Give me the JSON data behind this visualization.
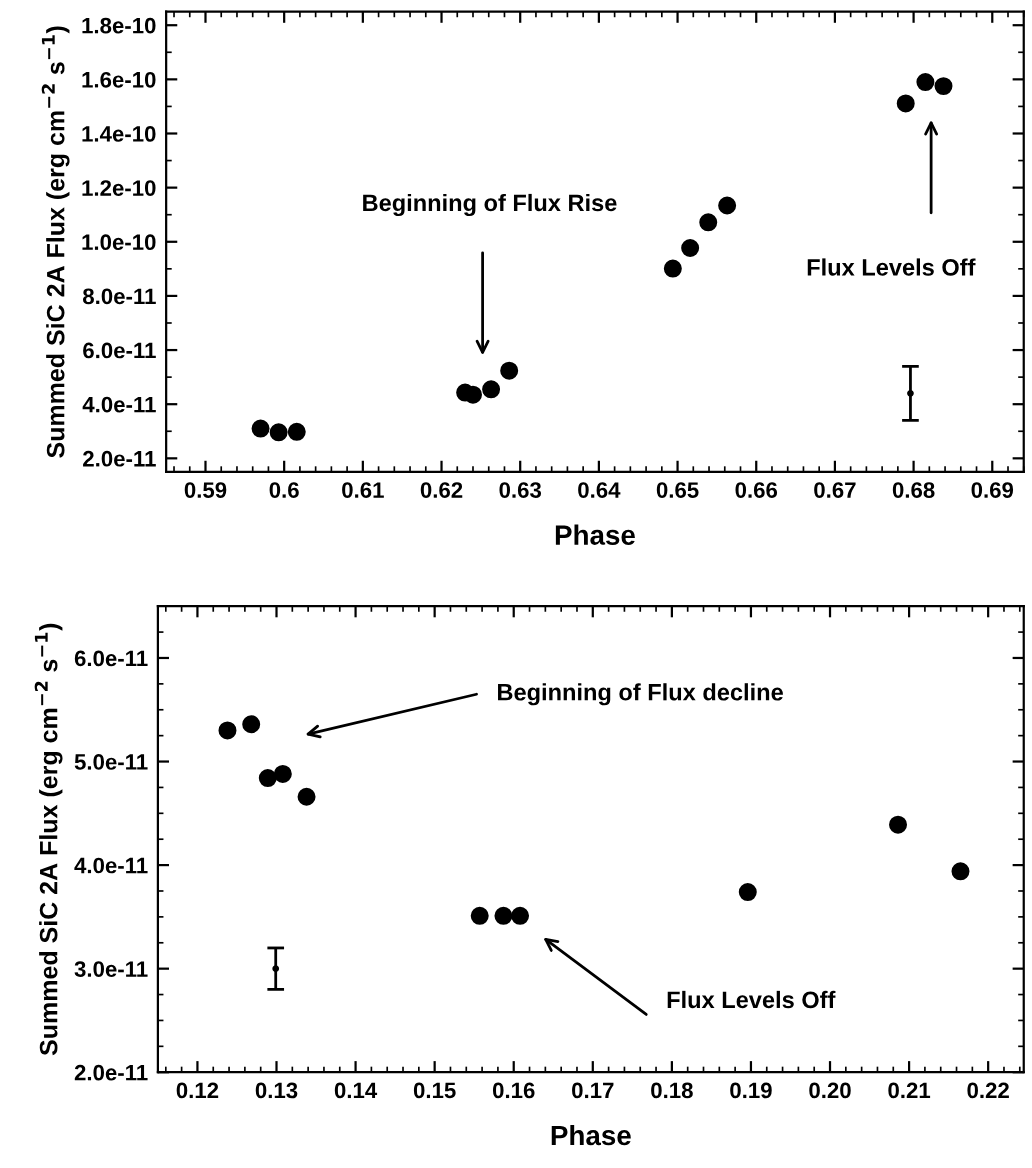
{
  "chart_data": [
    {
      "type": "scatter",
      "xlabel": "Phase",
      "ylabel": "Summed SiC 2A Flux (erg cm$^{−2}$ s$^{−1}$)",
      "xlim": [
        0.585,
        0.694
      ],
      "ylim": [
        1.5e-11,
        1.85e-10
      ],
      "xticks": [
        0.59,
        0.6,
        0.61,
        0.62,
        0.63,
        0.64,
        0.65,
        0.66,
        0.67,
        0.68,
        0.69
      ],
      "yticks": [
        {
          "value": 2e-11,
          "label": "2.0e-11"
        },
        {
          "value": 4e-11,
          "label": "4.0e-11"
        },
        {
          "value": 6e-11,
          "label": "6.0e-11"
        },
        {
          "value": 8e-11,
          "label": "8.0e-11"
        },
        {
          "value": 1e-10,
          "label": "1.0e-10"
        },
        {
          "value": 1.2e-10,
          "label": "1.2e-10"
        },
        {
          "value": 1.4e-10,
          "label": "1.4e-10"
        },
        {
          "value": 1.6e-10,
          "label": "1.6e-10"
        },
        {
          "value": 1.8e-10,
          "label": "1.8e-10"
        }
      ],
      "grid": false,
      "legend": false,
      "series": [
        {
          "color": "#000000",
          "marker": "circle",
          "x": [
            0.597,
            0.5993,
            0.6016,
            0.623,
            0.624,
            0.6263,
            0.6286,
            0.6494,
            0.6516,
            0.6539,
            0.6563,
            0.679,
            0.6815,
            0.6838
          ],
          "values": [
            3.1e-11,
            2.96e-11,
            2.98e-11,
            4.43e-11,
            4.35e-11,
            4.55e-11,
            5.24e-11,
            9.01e-11,
            9.77e-11,
            1.072e-10,
            1.134e-10,
            1.511e-10,
            1.59e-10,
            1.575e-10
          ]
        },
        {
          "color": "#000000",
          "marker": "none",
          "x": [
            0.6796
          ],
          "values": [
            4.4e-11
          ],
          "errors": [
            1e-11
          ]
        }
      ],
      "annotations": [
        "Beginning of Flux Rise",
        "Flux Levels Off"
      ]
    },
    {
      "type": "scatter",
      "xlabel": "Phase",
      "ylabel": "Summed SiC 2A Flux (erg cm$^{−2}$ s$^{−1}$)",
      "xlim": [
        0.115,
        0.2245
      ],
      "ylim": [
        2e-11,
        6.5e-11
      ],
      "xticks": [
        {
          "value": 0.12,
          "label": "0.12"
        },
        {
          "value": 0.13,
          "label": "0.13"
        },
        {
          "value": 0.14,
          "label": "0.14"
        },
        {
          "value": 0.15,
          "label": "0.15"
        },
        {
          "value": 0.16,
          "label": "0.16"
        },
        {
          "value": 0.17,
          "label": "0.17"
        },
        {
          "value": 0.18,
          "label": "0.18"
        },
        {
          "value": 0.19,
          "label": "0.19"
        },
        {
          "value": 0.2,
          "label": "0.20"
        },
        {
          "value": 0.21,
          "label": "0.21"
        },
        {
          "value": 0.22,
          "label": "0.22"
        }
      ],
      "yticks": [
        {
          "value": 2e-11,
          "label": "2.0e-11"
        },
        {
          "value": 3e-11,
          "label": "3.0e-11"
        },
        {
          "value": 4e-11,
          "label": "4.0e-11"
        },
        {
          "value": 5e-11,
          "label": "5.0e-11"
        },
        {
          "value": 6e-11,
          "label": "6.0e-11"
        }
      ],
      "grid": false,
      "legend": false,
      "series": [
        {
          "color": "#000000",
          "marker": "circle",
          "x": [
            0.1238,
            0.1268,
            0.1289,
            0.1308,
            0.1338,
            0.1557,
            0.1587,
            0.1608,
            0.1896,
            0.2086,
            0.2165
          ],
          "values": [
            5.3e-11,
            5.36e-11,
            4.84e-11,
            4.88e-11,
            4.66e-11,
            3.51e-11,
            3.51e-11,
            3.51e-11,
            3.74e-11,
            4.39e-11,
            3.94e-11
          ]
        },
        {
          "color": "#000000",
          "marker": "none",
          "x": [
            0.1299
          ],
          "values": [
            3e-11
          ],
          "errors": [
            2e-12
          ]
        }
      ],
      "annotations": [
        "Beginning of Flux decline",
        "Flux Levels Off"
      ]
    }
  ]
}
